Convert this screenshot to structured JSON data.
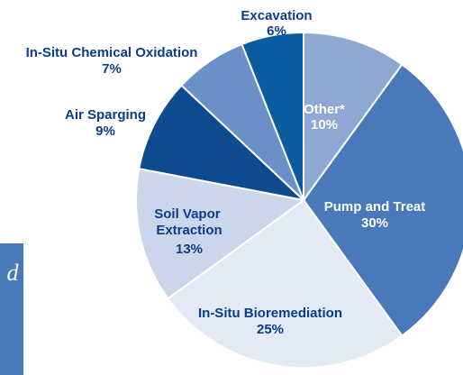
{
  "chart_data": {
    "type": "pie",
    "categories": [
      "Other*",
      "Pump and Treat",
      "In-Situ Bioremediation",
      "Soil Vapor Extraction",
      "Air Sparging",
      "In-Situ Chemical Oxidation",
      "Excavation"
    ],
    "values": [
      10,
      30,
      25,
      13,
      9,
      7,
      6
    ],
    "value_labels": [
      "10%",
      "30%",
      "25%",
      "13%",
      "9%",
      "7%",
      "6%"
    ],
    "colors": [
      "#8ea7d3",
      "#4a79b9",
      "#e3e9f5",
      "#ccd6eb",
      "#0c4b8f",
      "#6b8fc7",
      "#0b5ba1"
    ]
  },
  "fragments": [
    "d"
  ]
}
